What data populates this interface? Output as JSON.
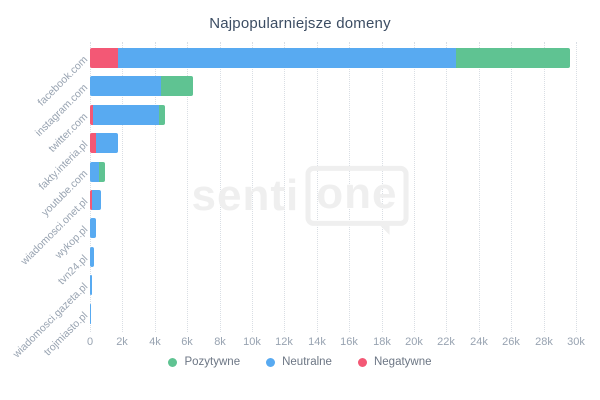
{
  "title": "Najpopularniejsze domeny",
  "watermark": {
    "part1": "senti",
    "part2": "one"
  },
  "colors": {
    "positive": "#5FC392",
    "neutral": "#58AAF1",
    "negative": "#F35875",
    "title_text": "#3C4D63",
    "axis_text": "#98A3B1",
    "gridline": "#D9DEE4"
  },
  "legend": [
    {
      "label": "Pozytywne",
      "color": "#5FC392"
    },
    {
      "label": "Neutralne",
      "color": "#58AAF1"
    },
    {
      "label": "Negatywne",
      "color": "#F35875"
    }
  ],
  "chart_data": {
    "type": "bar",
    "orientation": "horizontal",
    "stacked": true,
    "title": "Najpopularniejsze domeny",
    "categories": [
      "facebook.com",
      "instagram.com",
      "twitter.com",
      "fakty.interia.pl",
      "youtube.com",
      "wiadomosci.onet.pl",
      "wykop.pl",
      "tvn24.pl",
      "wiadomosci.gazeta.pl",
      "trojmiasto.pl"
    ],
    "series": [
      {
        "name": "Negatywne",
        "color": "#F35875",
        "values": [
          1700,
          0,
          200,
          350,
          0,
          100,
          0,
          0,
          0,
          0
        ]
      },
      {
        "name": "Neutralne",
        "color": "#58AAF1",
        "values": [
          20900,
          4400,
          4050,
          1400,
          550,
          560,
          400,
          250,
          150,
          80
        ]
      },
      {
        "name": "Pozytywne",
        "color": "#5FC392",
        "values": [
          7000,
          1950,
          380,
          0,
          400,
          0,
          0,
          0,
          0,
          0
        ]
      }
    ],
    "xlim": [
      0,
      30000
    ],
    "x_ticks": [
      "0",
      "2k",
      "4k",
      "6k",
      "8k",
      "10k",
      "12k",
      "14k",
      "16k",
      "18k",
      "20k",
      "22k",
      "24k",
      "26k",
      "28k",
      "30k"
    ],
    "grid": "vertical-dotted",
    "legend_position": "bottom"
  }
}
